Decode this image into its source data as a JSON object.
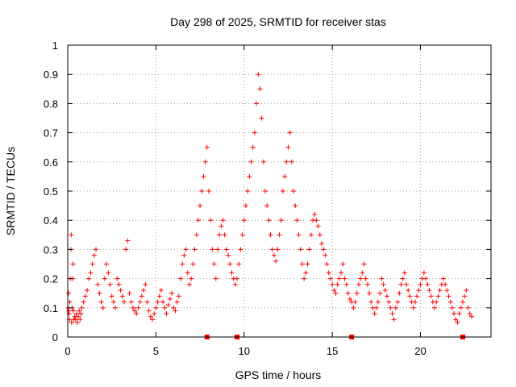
{
  "chart_data": {
    "type": "scatter",
    "title": "Day 298 of 2025, SRMTID for receiver stas",
    "xlabel": "GPS time / hours",
    "ylabel": "SRMTID / TECUs",
    "xlim": [
      0,
      24
    ],
    "ylim": [
      0,
      1
    ],
    "xticks": [
      0,
      5,
      10,
      15,
      20
    ],
    "yticks": [
      0,
      0.1,
      0.2,
      0.3,
      0.4,
      0.5,
      0.6,
      0.7,
      0.8,
      0.9,
      1
    ],
    "xtick_labels": [
      "0",
      "5",
      "10",
      "15",
      "20"
    ],
    "ytick_labels": [
      "0",
      "0.1",
      "0.2",
      "0.3",
      "0.4",
      "0.5",
      "0.6",
      "0.7",
      "0.8",
      "0.9",
      "1"
    ],
    "grid": true,
    "marker": "plus",
    "color": "#ff0000",
    "series": [
      {
        "name": "SRMTID",
        "x": [
          0.02,
          0.05,
          0.08,
          0.1,
          0.12,
          0.15,
          0.18,
          0.2,
          0.22,
          0.25,
          0.28,
          0.3,
          0.32,
          0.35,
          0.4,
          0.45,
          0.5,
          0.55,
          0.6,
          0.65,
          0.7,
          0.75,
          0.8,
          0.9,
          1.0,
          1.1,
          1.2,
          1.3,
          1.4,
          1.5,
          1.6,
          1.7,
          1.8,
          1.9,
          2.0,
          2.1,
          2.2,
          2.3,
          2.4,
          2.5,
          2.6,
          2.7,
          2.8,
          2.9,
          3.0,
          3.1,
          3.2,
          3.3,
          3.4,
          3.5,
          3.6,
          3.7,
          3.8,
          3.9,
          4.0,
          4.1,
          4.2,
          4.3,
          4.4,
          4.5,
          4.6,
          4.7,
          4.8,
          4.9,
          5.0,
          5.1,
          5.2,
          5.3,
          5.4,
          5.5,
          5.6,
          5.7,
          5.8,
          5.9,
          6.0,
          6.1,
          6.2,
          6.3,
          6.4,
          6.5,
          6.6,
          6.7,
          6.8,
          6.9,
          7.0,
          7.1,
          7.2,
          7.3,
          7.4,
          7.5,
          7.6,
          7.7,
          7.8,
          7.9,
          8.0,
          8.1,
          8.2,
          8.3,
          8.4,
          8.5,
          8.6,
          8.7,
          8.8,
          8.9,
          9.0,
          9.1,
          9.2,
          9.3,
          9.4,
          9.5,
          9.6,
          9.7,
          9.8,
          9.9,
          10.0,
          10.1,
          10.2,
          10.3,
          10.4,
          10.5,
          10.6,
          10.7,
          10.8,
          10.9,
          11.0,
          11.1,
          11.2,
          11.3,
          11.4,
          11.5,
          11.6,
          11.7,
          11.8,
          11.9,
          12.0,
          12.1,
          12.2,
          12.3,
          12.4,
          12.5,
          12.6,
          12.7,
          12.8,
          12.9,
          13.0,
          13.1,
          13.2,
          13.3,
          13.4,
          13.5,
          13.6,
          13.7,
          13.8,
          13.9,
          14.0,
          14.1,
          14.2,
          14.3,
          14.4,
          14.5,
          14.6,
          14.7,
          14.8,
          14.9,
          15.0,
          15.1,
          15.2,
          15.3,
          15.4,
          15.5,
          15.6,
          15.7,
          15.8,
          15.9,
          16.0,
          16.1,
          16.2,
          16.3,
          16.4,
          16.5,
          16.6,
          16.7,
          16.8,
          16.9,
          17.0,
          17.1,
          17.2,
          17.3,
          17.4,
          17.5,
          17.6,
          17.7,
          17.8,
          17.9,
          18.0,
          18.1,
          18.2,
          18.3,
          18.4,
          18.5,
          18.6,
          18.7,
          18.8,
          18.9,
          19.0,
          19.1,
          19.2,
          19.3,
          19.4,
          19.5,
          19.6,
          19.7,
          19.8,
          19.9,
          20.0,
          20.1,
          20.2,
          20.3,
          20.4,
          20.5,
          20.6,
          20.7,
          20.8,
          20.9,
          21.0,
          21.1,
          21.2,
          21.3,
          21.4,
          21.5,
          21.6,
          21.7,
          21.8,
          21.9,
          22.0,
          22.1,
          22.2,
          22.3,
          22.4,
          22.5,
          22.6,
          22.7,
          22.8,
          22.9,
          0.05,
          0.1,
          0.15,
          0.08,
          0.06,
          0.12,
          0.2,
          0.3,
          0.35,
          0.05,
          0.1,
          0.2,
          0.25,
          0.09,
          0.06,
          0.07,
          0.06,
          0.08,
          0.05,
          0.07,
          0.09,
          0.06,
          0.08,
          0.1,
          0.12,
          0.14,
          0.16,
          0.2,
          0.22,
          0.25,
          0.28,
          0.3,
          0.18,
          0.15,
          0.12,
          0.1,
          0.2,
          0.25,
          0.22,
          0.18,
          0.14,
          0.12,
          0.1,
          0.2,
          0.18,
          0.16,
          0.14,
          0.12,
          0.3,
          0.33,
          0.15,
          0.12,
          0.1,
          0.09,
          0.08,
          0.1,
          0.12,
          0.14,
          0.16,
          0.18,
          0.12,
          0.09,
          0.07,
          0.06,
          0.08,
          0.1,
          0.12,
          0.14,
          0.16,
          0.12,
          0.1,
          0.08,
          0.11,
          0.13,
          0.15,
          0.1,
          0.09,
          0.12,
          0.14,
          0.2,
          0.25,
          0.28,
          0.3,
          0.22,
          0.18,
          0.2,
          0.25,
          0.3,
          0.35,
          0.4,
          0.45,
          0.5,
          0.55,
          0.6,
          0.65,
          0.5,
          0.4,
          0.3,
          0.25,
          0.2,
          0.3,
          0.35,
          0.38,
          0.4,
          0.35,
          0.3,
          0.28,
          0.25,
          0.22,
          0.2,
          0.18,
          0.2,
          0.25,
          0.3,
          0.35,
          0.4,
          0.45,
          0.5,
          0.55,
          0.6,
          0.65,
          0.7,
          0.8,
          0.9,
          0.85,
          0.75,
          0.6,
          0.5,
          0.45,
          0.4,
          0.35,
          0.3,
          0.28,
          0.26,
          0.3,
          0.35,
          0.4,
          0.5,
          0.55,
          0.6,
          0.65,
          0.7,
          0.6,
          0.5,
          0.45,
          0.4,
          0.35,
          0.3,
          0.25,
          0.2,
          0.22,
          0.25,
          0.3,
          0.35,
          0.4,
          0.42,
          0.4,
          0.38,
          0.35,
          0.32,
          0.3,
          0.28,
          0.25,
          0.22,
          0.2,
          0.18,
          0.16,
          0.15,
          0.18,
          0.2,
          0.22,
          0.25,
          0.2,
          0.18,
          0.15,
          0.13,
          0.12,
          0.1,
          0.12,
          0.15,
          0.18,
          0.2,
          0.22,
          0.25,
          0.2,
          0.18,
          0.15,
          0.12,
          0.1,
          0.08,
          0.1,
          0.12,
          0.15,
          0.2,
          0.18,
          0.16,
          0.14,
          0.12,
          0.1,
          0.08,
          0.06,
          0.1,
          0.12,
          0.15,
          0.18,
          0.2,
          0.22,
          0.18,
          0.16,
          0.14,
          0.12,
          0.1,
          0.12,
          0.14,
          0.16,
          0.18,
          0.2,
          0.22,
          0.2,
          0.18,
          0.16,
          0.14,
          0.12,
          0.1,
          0.12,
          0.14,
          0.16,
          0.18,
          0.2,
          0.18,
          0.16,
          0.14,
          0.12,
          0.1,
          0.08,
          0.06,
          0.05,
          0.08,
          0.1,
          0.12,
          0.14,
          0.16,
          0.1,
          0.08,
          0.07,
          0.09
        ]
      }
    ],
    "gap_markers_x": [
      7.9,
      9.6,
      16.1,
      22.4
    ]
  }
}
